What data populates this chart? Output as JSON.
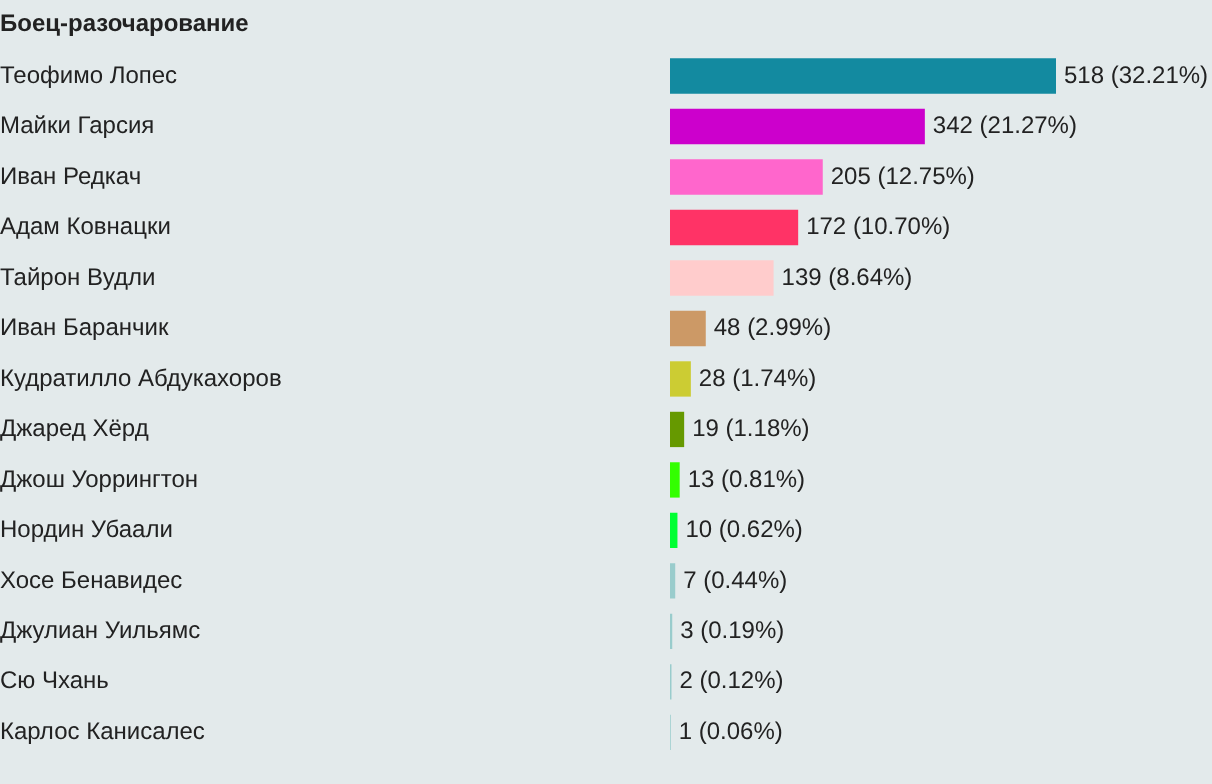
{
  "chart_data": {
    "type": "bar",
    "orientation": "horizontal",
    "title": "Боец-разочарование",
    "categories": [
      "Теофимо Лопес",
      "Майки Гарсия",
      "Иван Редкач",
      "Адам Ковнацки",
      "Тайрон Вудли",
      "Иван Баранчик",
      "Кудратилло Абдукахоров",
      "Джаред Хёрд",
      "Джош Уоррингтон",
      "Нордин Убаали",
      "Хосе Бенавидес",
      "Джулиан Уильямс",
      "Сю Чхань",
      "Карлос Канисалес"
    ],
    "values": [
      518,
      342,
      205,
      172,
      139,
      48,
      28,
      19,
      13,
      10,
      7,
      3,
      2,
      1
    ],
    "colors": [
      "#138aa0",
      "#cc00cc",
      "#ff66cc",
      "#ff3366",
      "#ffcccc",
      "#cc9966",
      "#cccc33",
      "#669900",
      "#33ff00",
      "#00ff33",
      "#99cccc",
      "#99cccc",
      "#99cccc",
      "#99cccc"
    ],
    "value_labels": [
      "518 (32.21%)",
      "342 (21.27%)",
      "205 (12.75%)",
      "172 (10.70%)",
      "139 (8.64%)",
      "48 (2.99%)",
      "28 (1.74%)",
      "19 (1.18%)",
      "13 (0.81%)",
      "10 (0.62%)",
      "7 (0.44%)",
      "3 (0.19%)",
      "2 (0.12%)",
      "1 (0.06%)"
    ],
    "grid": false,
    "legend": false
  }
}
